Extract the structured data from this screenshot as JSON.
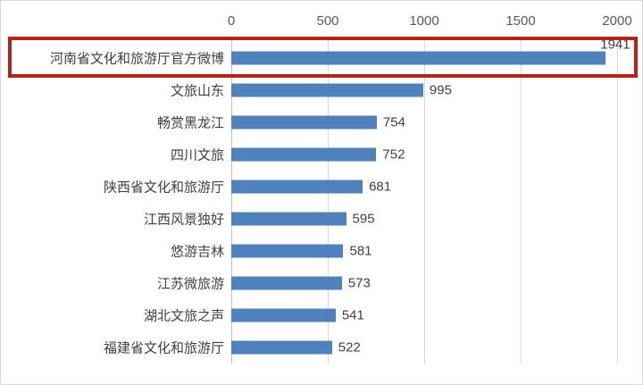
{
  "chart_data": {
    "type": "bar",
    "orientation": "horizontal",
    "title": "",
    "xlabel": "",
    "ylabel": "",
    "categories": [
      "河南省文化和旅游厅官方微博",
      "文旅山东",
      "畅赏黑龙江",
      "四川文旅",
      "陕西省文化和旅游厅",
      "江西风景独好",
      "悠游吉林",
      "江苏微旅游",
      "湖北文旅之声",
      "福建省文化和旅游厅"
    ],
    "values": [
      1941,
      995,
      754,
      752,
      681,
      595,
      581,
      573,
      541,
      522
    ],
    "data_labels": [
      "1941",
      "995",
      "754",
      "752",
      "681",
      "595",
      "581",
      "573",
      "541",
      "522"
    ],
    "xlim": [
      0,
      2000
    ],
    "x_ticks": [
      "0",
      "500",
      "1000",
      "1500",
      "2000"
    ],
    "x_tick_values": [
      0,
      500,
      1000,
      1500,
      2000
    ],
    "axis_position": "top",
    "grid": true,
    "legend": false,
    "colors": {
      "bar": "#4F81BD",
      "gridline": "#D9D9D9",
      "axis_line": "#BFBFBF",
      "tick_text": "#595959",
      "category_text": "#3F3F3F",
      "value_text": "#404040",
      "frame_border": "#D8D8D8",
      "background": "#FFFFFF"
    },
    "highlight": {
      "type": "box",
      "row_index": 0,
      "label": "河南省文化和旅游厅官方微博",
      "value": 1941,
      "color": "#B2231B"
    }
  }
}
